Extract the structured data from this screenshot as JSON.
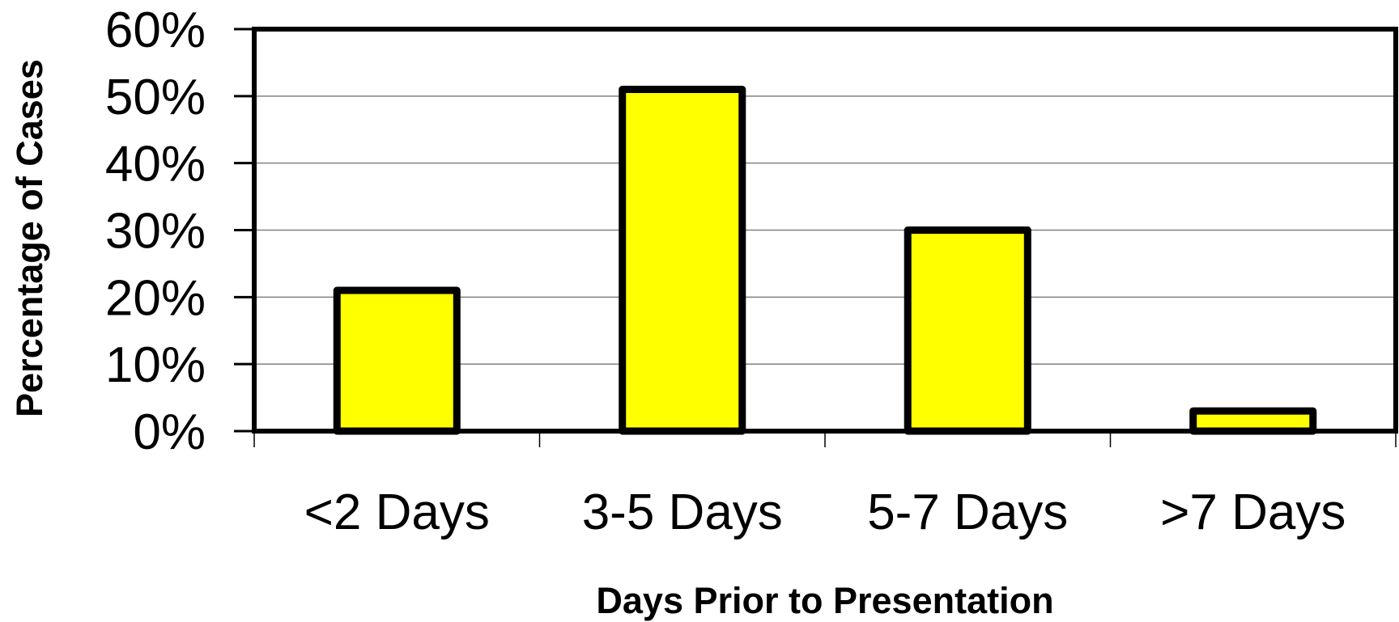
{
  "chart_data": {
    "type": "bar",
    "title": "",
    "xlabel": "Days Prior to Presentation",
    "ylabel": "Percentage of Cases",
    "categories": [
      "<2 Days",
      "3-5 Days",
      "5-7 Days",
      ">7 Days"
    ],
    "values": [
      21,
      51,
      30,
      3
    ],
    "value_unit": "%",
    "ylim": [
      0,
      60
    ],
    "yticks": [
      0,
      10,
      20,
      30,
      40,
      50,
      60
    ],
    "ytick_labels": [
      "0%",
      "10%",
      "20%",
      "30%",
      "40%",
      "50%",
      "60%"
    ],
    "grid": "horizontal",
    "legend": "none",
    "colors": {
      "bar_fill": "#FFFF00",
      "bar_stroke": "#000000",
      "gridline": "#808080",
      "axis": "#000000"
    }
  }
}
